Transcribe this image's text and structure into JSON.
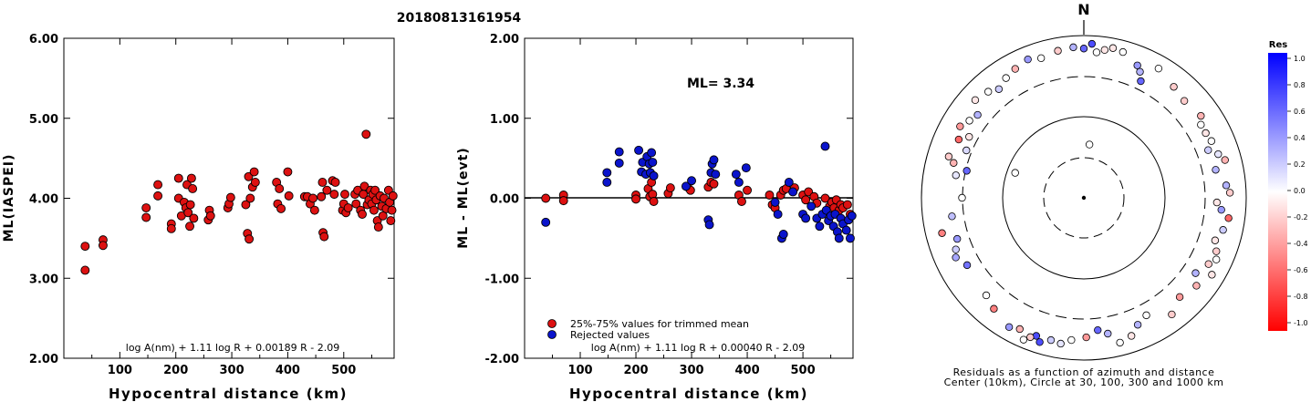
{
  "page_title": "20180813161954",
  "chart_data": [
    {
      "type": "scatter",
      "ylabel": "ML(IASPEI)",
      "xlabel": "Hypocentral distance (km)",
      "xlim": [
        0,
        590
      ],
      "ylim": [
        2.0,
        6.0
      ],
      "xticks": [
        "100",
        "200",
        "300",
        "400",
        "500"
      ],
      "yticks": [
        "2.00",
        "3.00",
        "4.00",
        "5.00",
        "6.00"
      ],
      "formula": "log A(nm) + 1.11 log R + 0.00189 R - 2.09",
      "grid": false,
      "points": [
        [
          38,
          3.4
        ],
        [
          38,
          3.1
        ],
        [
          70,
          3.48
        ],
        [
          70,
          3.41
        ],
        [
          147,
          3.88
        ],
        [
          147,
          3.76
        ],
        [
          168,
          4.17
        ],
        [
          168,
          4.03
        ],
        [
          192,
          3.68
        ],
        [
          192,
          3.62
        ],
        [
          205,
          4.25
        ],
        [
          205,
          4.0
        ],
        [
          210,
          3.78
        ],
        [
          215,
          3.95
        ],
        [
          218,
          3.88
        ],
        [
          220,
          4.17
        ],
        [
          222,
          3.82
        ],
        [
          225,
          3.65
        ],
        [
          226,
          3.92
        ],
        [
          228,
          4.25
        ],
        [
          230,
          4.12
        ],
        [
          232,
          3.75
        ],
        [
          258,
          3.73
        ],
        [
          260,
          3.85
        ],
        [
          262,
          3.78
        ],
        [
          293,
          3.88
        ],
        [
          295,
          3.93
        ],
        [
          298,
          4.01
        ],
        [
          325,
          3.92
        ],
        [
          328,
          3.56
        ],
        [
          330,
          4.27
        ],
        [
          331,
          3.49
        ],
        [
          333,
          4.0
        ],
        [
          337,
          4.14
        ],
        [
          340,
          4.33
        ],
        [
          342,
          4.2
        ],
        [
          380,
          4.2
        ],
        [
          382,
          3.93
        ],
        [
          385,
          4.12
        ],
        [
          388,
          3.87
        ],
        [
          400,
          4.33
        ],
        [
          402,
          4.03
        ],
        [
          430,
          4.02
        ],
        [
          435,
          4.02
        ],
        [
          440,
          3.93
        ],
        [
          445,
          4.0
        ],
        [
          448,
          3.85
        ],
        [
          460,
          4.02
        ],
        [
          462,
          4.2
        ],
        [
          463,
          3.57
        ],
        [
          465,
          3.52
        ],
        [
          470,
          4.1
        ],
        [
          480,
          4.22
        ],
        [
          483,
          4.05
        ],
        [
          485,
          4.2
        ],
        [
          498,
          3.85
        ],
        [
          500,
          3.93
        ],
        [
          502,
          4.05
        ],
        [
          504,
          3.82
        ],
        [
          508,
          3.88
        ],
        [
          520,
          4.05
        ],
        [
          522,
          3.93
        ],
        [
          525,
          4.1
        ],
        [
          530,
          3.85
        ],
        [
          533,
          3.8
        ],
        [
          535,
          4.05
        ],
        [
          537,
          4.15
        ],
        [
          540,
          4.8
        ],
        [
          542,
          3.92
        ],
        [
          545,
          3.98
        ],
        [
          548,
          4.1
        ],
        [
          550,
          3.93
        ],
        [
          552,
          4.05
        ],
        [
          554,
          3.85
        ],
        [
          556,
          4.1
        ],
        [
          558,
          3.98
        ],
        [
          560,
          3.72
        ],
        [
          562,
          3.64
        ],
        [
          565,
          4.03
        ],
        [
          568,
          3.9
        ],
        [
          570,
          3.78
        ],
        [
          572,
          4.0
        ],
        [
          576,
          3.87
        ],
        [
          580,
          4.1
        ],
        [
          582,
          3.95
        ],
        [
          584,
          3.72
        ],
        [
          586,
          3.85
        ],
        [
          588,
          4.03
        ]
      ]
    },
    {
      "type": "scatter",
      "ylabel": "ML - ML(evt)",
      "xlabel": "Hypocentral distance (km)",
      "xlim": [
        0,
        590
      ],
      "ylim": [
        -2.0,
        2.0
      ],
      "xticks": [
        "100",
        "200",
        "300",
        "400",
        "500"
      ],
      "yticks": [
        "-2.00",
        "-1.00",
        "0.00",
        "1.00",
        "2.00"
      ],
      "annotation": "ML= 3.34",
      "formula": "log A(nm) + 1.11 log R + 0.00040 R - 2.09",
      "legend": [
        {
          "label": "25%-75% values for trimmed mean",
          "color": "#dd1111"
        },
        {
          "label": "Rejected values",
          "color": "#0a14cc"
        }
      ],
      "grid": false,
      "series": [
        {
          "name": "25%-75% values for trimmed mean",
          "color": "#dd1111",
          "points": [
            [
              38,
              0.0
            ],
            [
              70,
              0.04
            ],
            [
              70,
              -0.03
            ],
            [
              200,
              0.04
            ],
            [
              200,
              -0.01
            ],
            [
              222,
              0.12
            ],
            [
              225,
              0.02
            ],
            [
              228,
              0.2
            ],
            [
              230,
              0.05
            ],
            [
              232,
              -0.04
            ],
            [
              258,
              0.06
            ],
            [
              262,
              0.13
            ],
            [
              293,
              0.14
            ],
            [
              298,
              0.1
            ],
            [
              330,
              0.14
            ],
            [
              335,
              0.2
            ],
            [
              340,
              0.18
            ],
            [
              385,
              0.04
            ],
            [
              390,
              -0.04
            ],
            [
              400,
              0.1
            ],
            [
              440,
              0.04
            ],
            [
              445,
              -0.08
            ],
            [
              450,
              -0.12
            ],
            [
              460,
              0.04
            ],
            [
              465,
              0.1
            ],
            [
              470,
              0.12
            ],
            [
              485,
              0.13
            ],
            [
              500,
              0.04
            ],
            [
              505,
              -0.02
            ],
            [
              510,
              0.08
            ],
            [
              520,
              0.02
            ],
            [
              525,
              -0.06
            ],
            [
              540,
              0.0
            ],
            [
              548,
              -0.1
            ],
            [
              552,
              -0.05
            ],
            [
              556,
              -0.12
            ],
            [
              560,
              -0.02
            ],
            [
              565,
              -0.15
            ],
            [
              568,
              -0.08
            ],
            [
              572,
              -0.12
            ],
            [
              580,
              -0.08
            ],
            [
              585,
              -0.2
            ]
          ]
        },
        {
          "name": "Rejected values",
          "color": "#0a14cc",
          "points": [
            [
              38,
              -0.3
            ],
            [
              148,
              0.32
            ],
            [
              148,
              0.2
            ],
            [
              170,
              0.58
            ],
            [
              170,
              0.44
            ],
            [
              205,
              0.6
            ],
            [
              210,
              0.33
            ],
            [
              212,
              0.45
            ],
            [
              218,
              0.3
            ],
            [
              220,
              0.52
            ],
            [
              224,
              0.43
            ],
            [
              226,
              0.32
            ],
            [
              228,
              0.57
            ],
            [
              230,
              0.45
            ],
            [
              232,
              0.28
            ],
            [
              290,
              0.15
            ],
            [
              300,
              0.22
            ],
            [
              330,
              -0.27
            ],
            [
              332,
              -0.33
            ],
            [
              335,
              0.32
            ],
            [
              337,
              0.43
            ],
            [
              340,
              0.48
            ],
            [
              343,
              0.3
            ],
            [
              380,
              0.3
            ],
            [
              385,
              0.2
            ],
            [
              398,
              0.38
            ],
            [
              450,
              -0.05
            ],
            [
              455,
              -0.2
            ],
            [
              462,
              -0.5
            ],
            [
              465,
              -0.45
            ],
            [
              475,
              0.2
            ],
            [
              482,
              0.08
            ],
            [
              500,
              -0.2
            ],
            [
              505,
              -0.25
            ],
            [
              515,
              -0.1
            ],
            [
              525,
              -0.25
            ],
            [
              530,
              -0.35
            ],
            [
              535,
              -0.2
            ],
            [
              540,
              0.65
            ],
            [
              542,
              -0.15
            ],
            [
              546,
              -0.28
            ],
            [
              550,
              -0.22
            ],
            [
              555,
              -0.35
            ],
            [
              558,
              -0.2
            ],
            [
              562,
              -0.42
            ],
            [
              565,
              -0.5
            ],
            [
              568,
              -0.25
            ],
            [
              572,
              -0.32
            ],
            [
              578,
              -0.4
            ],
            [
              582,
              -0.27
            ],
            [
              585,
              -0.5
            ],
            [
              588,
              -0.22
            ]
          ]
        }
      ]
    },
    {
      "type": "polar-scatter",
      "north_label": "N",
      "caption_line1": "Residuals as a function of azimuth and distance",
      "caption_line2": "Center (10km), Circle at 30, 100, 300 and 1000 km",
      "colorbar": {
        "title": "Res",
        "ticks": [
          "1.0",
          "0.8",
          "0.6",
          "0.4",
          "0.2",
          "0.0",
          "-0.2",
          "-0.4",
          "-0.6",
          "-0.8",
          "-1.0"
        ],
        "max_color": "#0000ff",
        "min_color": "#ff0000"
      },
      "points": [
        {
          "az": 245,
          "r": 0.87,
          "res": 0.35
        },
        {
          "az": 248,
          "r": 0.85,
          "res": 0.2
        },
        {
          "az": 252,
          "r": 0.82,
          "res": 0.4
        },
        {
          "az": 240,
          "r": 0.83,
          "res": 0.55
        },
        {
          "az": 256,
          "r": 0.9,
          "res": -0.5
        },
        {
          "az": 262,
          "r": 0.82,
          "res": 0.25
        },
        {
          "az": 270,
          "r": 0.75,
          "res": 0.0
        },
        {
          "az": 280,
          "r": 0.8,
          "res": 0.1
        },
        {
          "az": 283,
          "r": 0.74,
          "res": 0.6
        },
        {
          "az": 285,
          "r": 0.83,
          "res": -0.3
        },
        {
          "az": 287,
          "r": 0.87,
          "res": -0.2
        },
        {
          "az": 292,
          "r": 0.78,
          "res": 0.15
        },
        {
          "az": 295,
          "r": 0.85,
          "res": -0.6
        },
        {
          "az": 298,
          "r": 0.8,
          "res": -0.1
        },
        {
          "az": 300,
          "r": 0.88,
          "res": -0.4
        },
        {
          "az": 304,
          "r": 0.85,
          "res": 0.0
        },
        {
          "az": 308,
          "r": 0.83,
          "res": 0.3
        },
        {
          "az": 312,
          "r": 0.9,
          "res": -0.1
        },
        {
          "az": 318,
          "r": 0.88,
          "res": 0.0
        },
        {
          "az": 322,
          "r": 0.85,
          "res": 0.2
        },
        {
          "az": 327,
          "r": 0.88,
          "res": 0.0
        },
        {
          "az": 332,
          "r": 0.9,
          "res": -0.3
        },
        {
          "az": 338,
          "r": 0.92,
          "res": 0.4
        },
        {
          "az": 343,
          "r": 0.9,
          "res": 0.0
        },
        {
          "az": 350,
          "r": 0.92,
          "res": -0.2
        },
        {
          "az": 356,
          "r": 0.93,
          "res": 0.3
        },
        {
          "az": 0,
          "r": 0.92,
          "res": 0.6
        },
        {
          "az": 3,
          "r": 0.95,
          "res": 0.7
        },
        {
          "az": 5,
          "r": 0.9,
          "res": 0.0
        },
        {
          "az": 8,
          "r": 0.92,
          "res": -0.1
        },
        {
          "az": 11,
          "r": 0.94,
          "res": -0.1
        },
        {
          "az": 15,
          "r": 0.93,
          "res": 0.0
        },
        {
          "az": 22,
          "r": 0.88,
          "res": 0.4
        },
        {
          "az": 24,
          "r": 0.85,
          "res": 0.3
        },
        {
          "az": 26,
          "r": 0.8,
          "res": 0.6
        },
        {
          "az": 30,
          "r": 0.92,
          "res": 0.0
        },
        {
          "az": 39,
          "r": 0.88,
          "res": -0.2
        },
        {
          "az": 46,
          "r": 0.86,
          "res": -0.2
        },
        {
          "az": 55,
          "r": 0.88,
          "res": -0.3
        },
        {
          "az": 58,
          "r": 0.85,
          "res": 0.0
        },
        {
          "az": 62,
          "r": 0.85,
          "res": -0.1
        },
        {
          "az": 66,
          "r": 0.86,
          "res": 0.0
        },
        {
          "az": 69,
          "r": 0.82,
          "res": 0.2
        },
        {
          "az": 72,
          "r": 0.87,
          "res": 0.1
        },
        {
          "az": 75,
          "r": 0.9,
          "res": -0.3
        },
        {
          "az": 78,
          "r": 0.83,
          "res": 0.3
        },
        {
          "az": 85,
          "r": 0.88,
          "res": 0.3
        },
        {
          "az": 88,
          "r": 0.9,
          "res": -0.2
        },
        {
          "az": 92,
          "r": 0.82,
          "res": -0.1
        },
        {
          "az": 95,
          "r": 0.85,
          "res": 0.4
        },
        {
          "az": 98,
          "r": 0.9,
          "res": -0.6
        },
        {
          "az": 103,
          "r": 0.88,
          "res": 0.2
        },
        {
          "az": 108,
          "r": 0.85,
          "res": -0.1
        },
        {
          "az": 112,
          "r": 0.88,
          "res": -0.2
        },
        {
          "az": 115,
          "r": 0.9,
          "res": 0.0
        },
        {
          "az": 118,
          "r": 0.87,
          "res": -0.2
        },
        {
          "az": 121,
          "r": 0.92,
          "res": -0.1
        },
        {
          "az": 124,
          "r": 0.83,
          "res": 0.3
        },
        {
          "az": 128,
          "r": 0.88,
          "res": -0.3
        },
        {
          "az": 136,
          "r": 0.85,
          "res": -0.4
        },
        {
          "az": 143,
          "r": 0.9,
          "res": -0.2
        },
        {
          "az": 152,
          "r": 0.82,
          "res": 0.0
        },
        {
          "az": 157,
          "r": 0.85,
          "res": 0.3
        },
        {
          "az": 161,
          "r": 0.9,
          "res": -0.1
        },
        {
          "az": 166,
          "r": 0.92,
          "res": 0.0
        },
        {
          "az": 170,
          "r": 0.85,
          "res": 0.3
        },
        {
          "az": 174,
          "r": 0.82,
          "res": 0.6
        },
        {
          "az": 179,
          "r": 0.86,
          "res": -0.4
        },
        {
          "az": 185,
          "r": 0.88,
          "res": 0.0
        },
        {
          "az": 189,
          "r": 0.91,
          "res": 0.1
        },
        {
          "az": 193,
          "r": 0.9,
          "res": 0.2
        },
        {
          "az": 197,
          "r": 0.93,
          "res": 0.7
        },
        {
          "az": 199,
          "r": 0.9,
          "res": 0.7
        },
        {
          "az": 201,
          "r": 0.92,
          "res": -0.2
        },
        {
          "az": 203,
          "r": 0.95,
          "res": 0.0
        },
        {
          "az": 206,
          "r": 0.9,
          "res": -0.3
        },
        {
          "az": 210,
          "r": 0.92,
          "res": 0.4
        },
        {
          "az": 219,
          "r": 0.88,
          "res": -0.5
        },
        {
          "az": 225,
          "r": 0.85,
          "res": 0.0
        },
        {
          "az": 6,
          "r": 0.33,
          "res": 0.0
        },
        {
          "az": 290,
          "r": 0.45,
          "res": 0.0
        }
      ]
    }
  ]
}
